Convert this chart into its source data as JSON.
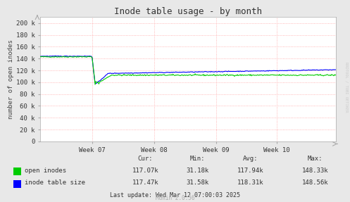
{
  "title": "Inode table usage - by month",
  "ylabel": "number of open inodes",
  "bg_color": "#e8e8e8",
  "plot_bg_color": "#ffffff",
  "grid_color": "#ff9999",
  "yticks": [
    0,
    20000,
    40000,
    60000,
    80000,
    100000,
    120000,
    140000,
    160000,
    180000,
    200000
  ],
  "ytick_labels": [
    "0",
    "20 k",
    "40 k",
    "60 k",
    "80 k",
    "100 k",
    "120 k",
    "140 k",
    "160 k",
    "180 k",
    "200 k"
  ],
  "ylim": [
    0,
    210000
  ],
  "xtick_labels": [
    "Week 07",
    "Week 08",
    "Week 09",
    "Week 10"
  ],
  "open_inodes_color": "#00cc00",
  "inode_table_color": "#0000ff",
  "watermark": "RRDTOOL / TOBI OETIKER",
  "footer_text": "Munin 2.0.56",
  "last_update": "Last update: Wed Mar 12 07:00:03 2025",
  "legend": [
    {
      "label": "open inodes",
      "color": "#00cc00",
      "cur": "117.07k",
      "min": "31.18k",
      "avg": "117.94k",
      "max": "148.33k"
    },
    {
      "label": "inode table size",
      "color": "#0000ff",
      "cur": "117.47k",
      "min": "31.58k",
      "avg": "118.31k",
      "max": "148.56k"
    }
  ]
}
